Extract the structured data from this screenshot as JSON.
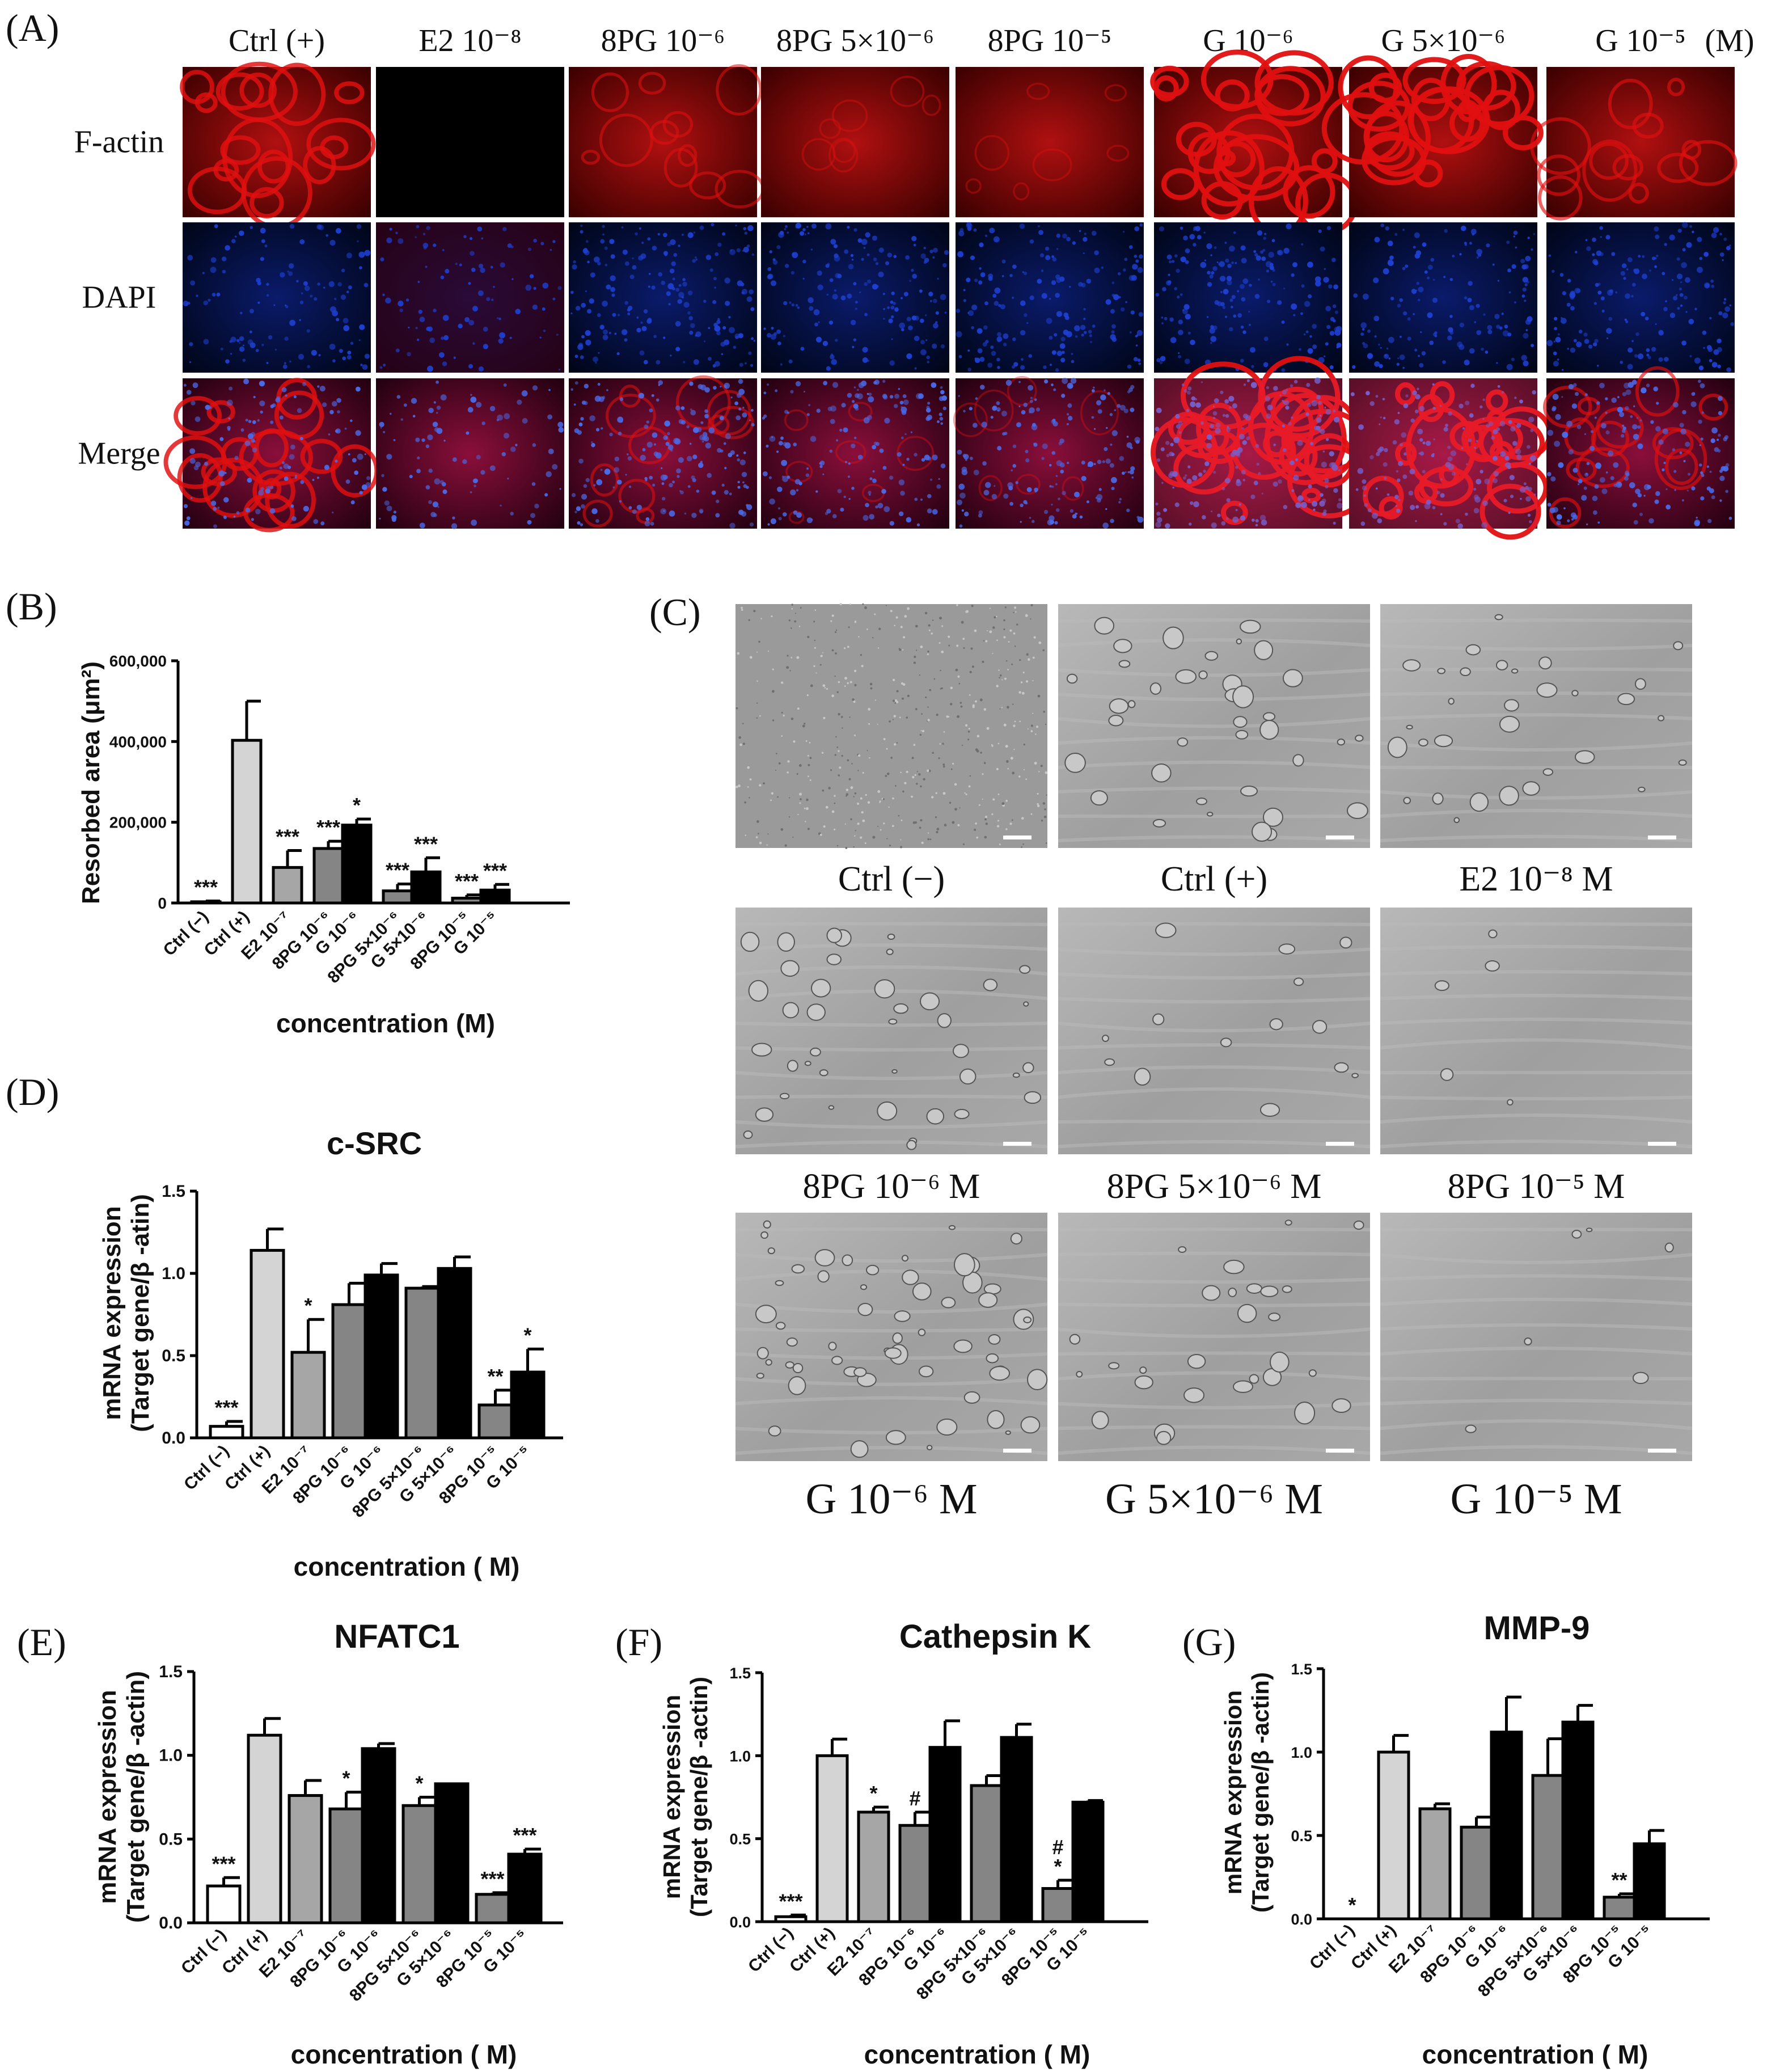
{
  "panels": {
    "A": {
      "letter": "(A)",
      "columns": [
        "Ctrl (+)",
        "E2 10⁻⁸",
        "8PG 10⁻⁶",
        "8PG 5×10⁻⁶",
        "8PG 10⁻⁵",
        "G 10⁻⁶",
        "G 5×10⁻⁶",
        "G 10⁻⁵"
      ],
      "unit": "(M)",
      "rows": [
        "F-actin",
        "DAPI",
        "Merge"
      ]
    },
    "B": {
      "letter": "(B)"
    },
    "C": {
      "letter": "(C)",
      "labels": [
        "Ctrl (−)",
        "Ctrl (+)",
        "E2 10⁻⁸ M",
        "8PG 10⁻⁶ M",
        "8PG 5×10⁻⁶ M",
        "8PG 10⁻⁵ M",
        "G 10⁻⁶ M",
        "G 5×10⁻⁶ M",
        "G 10⁻⁵ M"
      ]
    },
    "D": {
      "letter": "(D)"
    },
    "E": {
      "letter": "(E)"
    },
    "F": {
      "letter": "(F)"
    },
    "G": {
      "letter": "(G)"
    }
  },
  "colors": {
    "ctrl_neg": "#ffffff",
    "ctrl_pos": "#d4d4d4",
    "e2": "#a6a6a6",
    "pg8": "#858585",
    "genistein": "#000000",
    "factin_red": "#e01010",
    "dapi_blue": "#1e3fd0",
    "micrograph_gray": "#a3a3a3"
  },
  "chart_data": [
    {
      "id": "B",
      "type": "bar",
      "title": "",
      "xlabel": "concentration (M)",
      "ylabel": "Resorbed area (μm²)",
      "ylim": [
        0,
        600000
      ],
      "yticks": [
        "0",
        "200,000",
        "400,000",
        "600,000"
      ],
      "categories": [
        "Ctrl (−)",
        "Ctrl (+)",
        "E2 10⁻⁷",
        "8PG 10⁻⁶",
        "G 10⁻⁶",
        "8PG 5×10⁻⁶",
        "G 5×10⁻⁶",
        "8PG 10⁻⁵",
        "G 10⁻⁵"
      ],
      "values": [
        3000,
        403000,
        88000,
        135000,
        193000,
        30000,
        77000,
        12000,
        32000
      ],
      "errors": [
        2000,
        97000,
        42000,
        18000,
        15000,
        17000,
        35000,
        8000,
        14000
      ],
      "annotations": [
        "***",
        "",
        "***",
        "***",
        "*",
        "***",
        "***",
        "***",
        "***"
      ],
      "legend": "none"
    },
    {
      "id": "D",
      "type": "bar",
      "title": "c-SRC",
      "xlabel": "concentration ( M)",
      "ylabel": "mRNA expression\n(Target gene/β -atin)",
      "ylim": [
        0,
        1.5
      ],
      "yticks": [
        "0.0",
        "0.5",
        "1.0",
        "1.5"
      ],
      "categories": [
        "Ctrl (−)",
        "Ctrl (+)",
        "E2 10⁻⁷",
        "8PG 10⁻⁶",
        "G 10⁻⁶",
        "8PG 5×10⁻⁶",
        "G 5×10⁻⁶",
        "8PG 10⁻⁵",
        "G 10⁻⁵"
      ],
      "values": [
        0.07,
        1.14,
        0.52,
        0.81,
        0.99,
        0.91,
        1.03,
        0.2,
        0.4
      ],
      "errors": [
        0.03,
        0.13,
        0.2,
        0.13,
        0.07,
        0.01,
        0.07,
        0.09,
        0.14
      ],
      "annotations": [
        "***",
        "",
        "*",
        "",
        "",
        "",
        "",
        "**",
        "*"
      ],
      "legend": "none"
    },
    {
      "id": "E",
      "type": "bar",
      "title": "NFATC1",
      "xlabel": "concentration ( M)",
      "ylabel": "mRNA expression\n(Target gene/β -actin)",
      "ylim": [
        0,
        1.5
      ],
      "yticks": [
        "0.0",
        "0.5",
        "1.0",
        "1.5"
      ],
      "categories": [
        "Ctrl (−)",
        "Ctrl (+)",
        "E2 10⁻⁷",
        "8PG 10⁻⁶",
        "G 10⁻⁶",
        "8PG 5×10⁻⁶",
        "G 5×10⁻⁶",
        "8PG 10⁻⁵",
        "G 10⁻⁵"
      ],
      "values": [
        0.22,
        1.12,
        0.76,
        0.68,
        1.04,
        0.7,
        0.83,
        0.17,
        0.41
      ],
      "errors": [
        0.05,
        0.1,
        0.09,
        0.1,
        0.03,
        0.05,
        0.0,
        0.01,
        0.03
      ],
      "annotations": [
        "***",
        "",
        "",
        "*",
        "",
        "*",
        "",
        "***",
        "***"
      ],
      "legend": "none"
    },
    {
      "id": "F",
      "type": "bar",
      "title": "Cathepsin K",
      "xlabel": "concentration ( M)",
      "ylabel": "mRNA expression\n(Target gene/β -actin)",
      "ylim": [
        0,
        1.5
      ],
      "yticks": [
        "0.0",
        "0.5",
        "1.0",
        "1.5"
      ],
      "categories": [
        "Ctrl (−)",
        "Ctrl (+)",
        "E2 10⁻⁷",
        "8PG 10⁻⁶",
        "G 10⁻⁶",
        "8PG 5×10⁻⁶",
        "G 5×10⁻⁶",
        "8PG 10⁻⁵",
        "G 10⁻⁵"
      ],
      "values": [
        0.03,
        1.0,
        0.66,
        0.58,
        1.05,
        0.82,
        1.11,
        0.2,
        0.72
      ],
      "errors": [
        0.01,
        0.1,
        0.03,
        0.08,
        0.16,
        0.06,
        0.08,
        0.05,
        0.01
      ],
      "annotations": [
        "***",
        "",
        "*",
        "#",
        "",
        "",
        "",
        "#\n*",
        ""
      ],
      "legend": "none"
    },
    {
      "id": "G",
      "type": "bar",
      "title": "MMP-9",
      "xlabel": "concentration ( M)",
      "ylabel": "mRNA expression\n(Target gene/β -actin)",
      "ylim": [
        0,
        1.5
      ],
      "yticks": [
        "0.0",
        "0.5",
        "1.0",
        "1.5"
      ],
      "categories": [
        "Ctrl (−)",
        "Ctrl (+)",
        "E2 10⁻⁷",
        "8PG 10⁻⁶",
        "G 10⁻⁶",
        "8PG 5×10⁻⁶",
        "G 5×10⁻⁶",
        "8PG 10⁻⁵",
        "G 10⁻⁵"
      ],
      "values": [
        0.0,
        1.0,
        0.66,
        0.55,
        1.12,
        0.86,
        1.18,
        0.13,
        0.45
      ],
      "errors": [
        0.0,
        0.1,
        0.03,
        0.06,
        0.21,
        0.22,
        0.1,
        0.02,
        0.08
      ],
      "annotations": [
        "*",
        "",
        "",
        "",
        "",
        "",
        "",
        "**",
        ""
      ],
      "legend": "none"
    }
  ]
}
